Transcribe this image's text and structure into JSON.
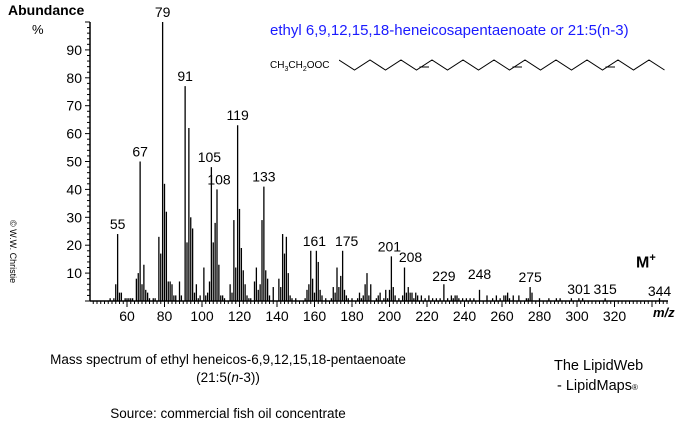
{
  "header": {
    "y_axis_label": "Abundance",
    "y_axis_unit": "%",
    "title": "ethyl 6,9,12,15,18-heneicosapentaenoate or 21:5(n-3)",
    "formula_prefix": "CH3CH2OOC",
    "copyright": "© W.W. Christie"
  },
  "annotations": {
    "molecular_ion_label": "M",
    "molecular_ion_sup": "+",
    "x_axis_label": "m/z"
  },
  "captions": {
    "line1": "Mass spectrum of ethyl heneicos-6,9,12,15,18-pentaenoate",
    "line2_pre": "(21:5(",
    "line2_italic": "n",
    "line2_post": "-3))",
    "source": "Source:  commercial fish oil concentrate"
  },
  "branding": {
    "line1": "The LipidWeb",
    "line2": "- LipidMaps",
    "registered": "®"
  },
  "chart_data": {
    "type": "bar",
    "title": "ethyl 6,9,12,15,18-heneicosapentaenoate or 21:5(n-3)",
    "xlabel": "m/z",
    "ylabel": "Abundance %",
    "xlim": [
      41,
      350
    ],
    "ylim": [
      0,
      100
    ],
    "x_ticks": [
      60,
      80,
      100,
      120,
      140,
      160,
      180,
      200,
      220,
      240,
      260,
      280,
      300,
      320
    ],
    "y_ticks": [
      10,
      20,
      30,
      40,
      50,
      60,
      70,
      80,
      90
    ],
    "grid": false,
    "labeled_peaks": [
      {
        "mz": 55,
        "label": "55"
      },
      {
        "mz": 67,
        "label": "67"
      },
      {
        "mz": 79,
        "label": "79"
      },
      {
        "mz": 91,
        "label": "91"
      },
      {
        "mz": 105,
        "label": "105"
      },
      {
        "mz": 108,
        "label": "108"
      },
      {
        "mz": 119,
        "label": "119"
      },
      {
        "mz": 133,
        "label": "133"
      },
      {
        "mz": 161,
        "label": "161"
      },
      {
        "mz": 175,
        "label": "175"
      },
      {
        "mz": 201,
        "label": "201"
      },
      {
        "mz": 208,
        "label": "208"
      },
      {
        "mz": 229,
        "label": "229"
      },
      {
        "mz": 248,
        "label": "248"
      },
      {
        "mz": 275,
        "label": "275"
      },
      {
        "mz": 301,
        "label": "301"
      },
      {
        "mz": 315,
        "label": "315"
      },
      {
        "mz": 344,
        "label": "344"
      }
    ],
    "x": [
      51,
      53,
      54,
      55,
      56,
      57,
      59,
      60,
      61,
      62,
      63,
      65,
      66,
      67,
      68,
      69,
      70,
      71,
      72,
      74,
      75,
      77,
      78,
      79,
      80,
      81,
      82,
      83,
      84,
      85,
      86,
      88,
      89,
      91,
      92,
      93,
      94,
      95,
      96,
      97,
      98,
      99,
      101,
      102,
      103,
      104,
      105,
      106,
      107,
      108,
      109,
      110,
      111,
      112,
      115,
      116,
      117,
      118,
      119,
      120,
      121,
      122,
      123,
      124,
      125,
      126,
      128,
      129,
      130,
      131,
      132,
      133,
      134,
      135,
      136,
      138,
      141,
      142,
      143,
      144,
      145,
      146,
      147,
      148,
      150,
      155,
      156,
      157,
      158,
      159,
      160,
      161,
      162,
      163,
      164,
      166,
      169,
      170,
      171,
      172,
      173,
      174,
      175,
      176,
      177,
      178,
      180,
      183,
      184,
      185,
      186,
      187,
      188,
      189,
      190,
      193,
      194,
      195,
      197,
      198,
      199,
      200,
      201,
      202,
      203,
      205,
      207,
      208,
      209,
      210,
      211,
      212,
      213,
      214,
      215,
      217,
      219,
      221,
      223,
      225,
      227,
      229,
      231,
      233,
      234,
      235,
      236,
      237,
      239,
      241,
      243,
      245,
      248,
      252,
      255,
      257,
      259,
      261,
      262,
      263,
      264,
      266,
      269,
      273,
      274,
      275,
      276,
      280,
      285,
      289,
      291,
      297,
      301,
      303,
      315,
      344
    ],
    "values": [
      1,
      1,
      6,
      24,
      3,
      3,
      1,
      1,
      1,
      1,
      1,
      8,
      10,
      50,
      6,
      13,
      4,
      3,
      1,
      1,
      1,
      23,
      17,
      100,
      42,
      32,
      7,
      7,
      6,
      2,
      2,
      7,
      2,
      77,
      21,
      62,
      30,
      26,
      3,
      6,
      1,
      2,
      12,
      2,
      3,
      7,
      48,
      21,
      28,
      40,
      13,
      2,
      2,
      1,
      6,
      3,
      29,
      12,
      63,
      33,
      19,
      11,
      6,
      2,
      1,
      1,
      7,
      12,
      4,
      6,
      29,
      41,
      11,
      8,
      2,
      5,
      8,
      5,
      24,
      17,
      23,
      10,
      2,
      1,
      1,
      1,
      4,
      6,
      18,
      8,
      3,
      18,
      14,
      4,
      2,
      1,
      1,
      5,
      3,
      12,
      5,
      9,
      18,
      4,
      2,
      1,
      1,
      1,
      3,
      1,
      2,
      6,
      10,
      2,
      6,
      1,
      2,
      3,
      1,
      4,
      1,
      4,
      16,
      5,
      2,
      1,
      2,
      12,
      3,
      5,
      3,
      3,
      1,
      3,
      2,
      2,
      1,
      2,
      1,
      1,
      1,
      6,
      1,
      2,
      1,
      2,
      2,
      1,
      1,
      1,
      1,
      1,
      4,
      2,
      1,
      2,
      1,
      2,
      2,
      3,
      1,
      2,
      2,
      1,
      1,
      5,
      3,
      1,
      1,
      1,
      1,
      1,
      1,
      1,
      1,
      1
    ]
  }
}
